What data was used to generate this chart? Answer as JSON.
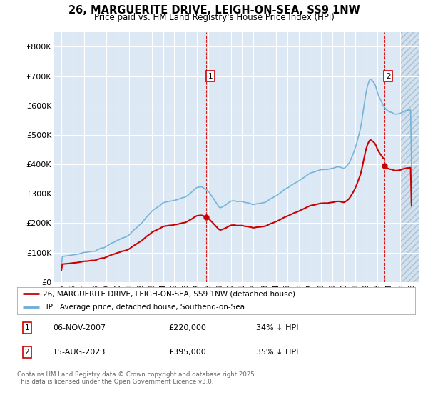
{
  "title": "26, MARGUERITE DRIVE, LEIGH-ON-SEA, SS9 1NW",
  "subtitle": "Price paid vs. HM Land Registry's House Price Index (HPI)",
  "plot_bg_color": "#dce9f5",
  "hpi_color": "#6baed6",
  "price_color": "#cc0000",
  "annotation1": {
    "label": "1",
    "date": "06-NOV-2007",
    "price": 220000,
    "pct": "34% ↓ HPI"
  },
  "annotation2": {
    "label": "2",
    "date": "15-AUG-2023",
    "price": 395000,
    "pct": "35% ↓ HPI"
  },
  "legend_label_price": "26, MARGUERITE DRIVE, LEIGH-ON-SEA, SS9 1NW (detached house)",
  "legend_label_hpi": "HPI: Average price, detached house, Southend-on-Sea",
  "footer": "Contains HM Land Registry data © Crown copyright and database right 2025.\nThis data is licensed under the Open Government Licence v3.0.",
  "ylim": [
    0,
    850000
  ],
  "yticks": [
    0,
    100000,
    200000,
    300000,
    400000,
    500000,
    600000,
    700000,
    800000
  ],
  "ytick_labels": [
    "£0",
    "£100K",
    "£200K",
    "£300K",
    "£400K",
    "£500K",
    "£600K",
    "£700K",
    "£800K"
  ],
  "purchase1_year": 2007.833,
  "purchase1_price": 220000,
  "purchase2_year": 2023.583,
  "purchase2_price": 395000,
  "xlim_left": 1994.3,
  "xlim_right": 2026.7,
  "hatch_start": 2025.0
}
